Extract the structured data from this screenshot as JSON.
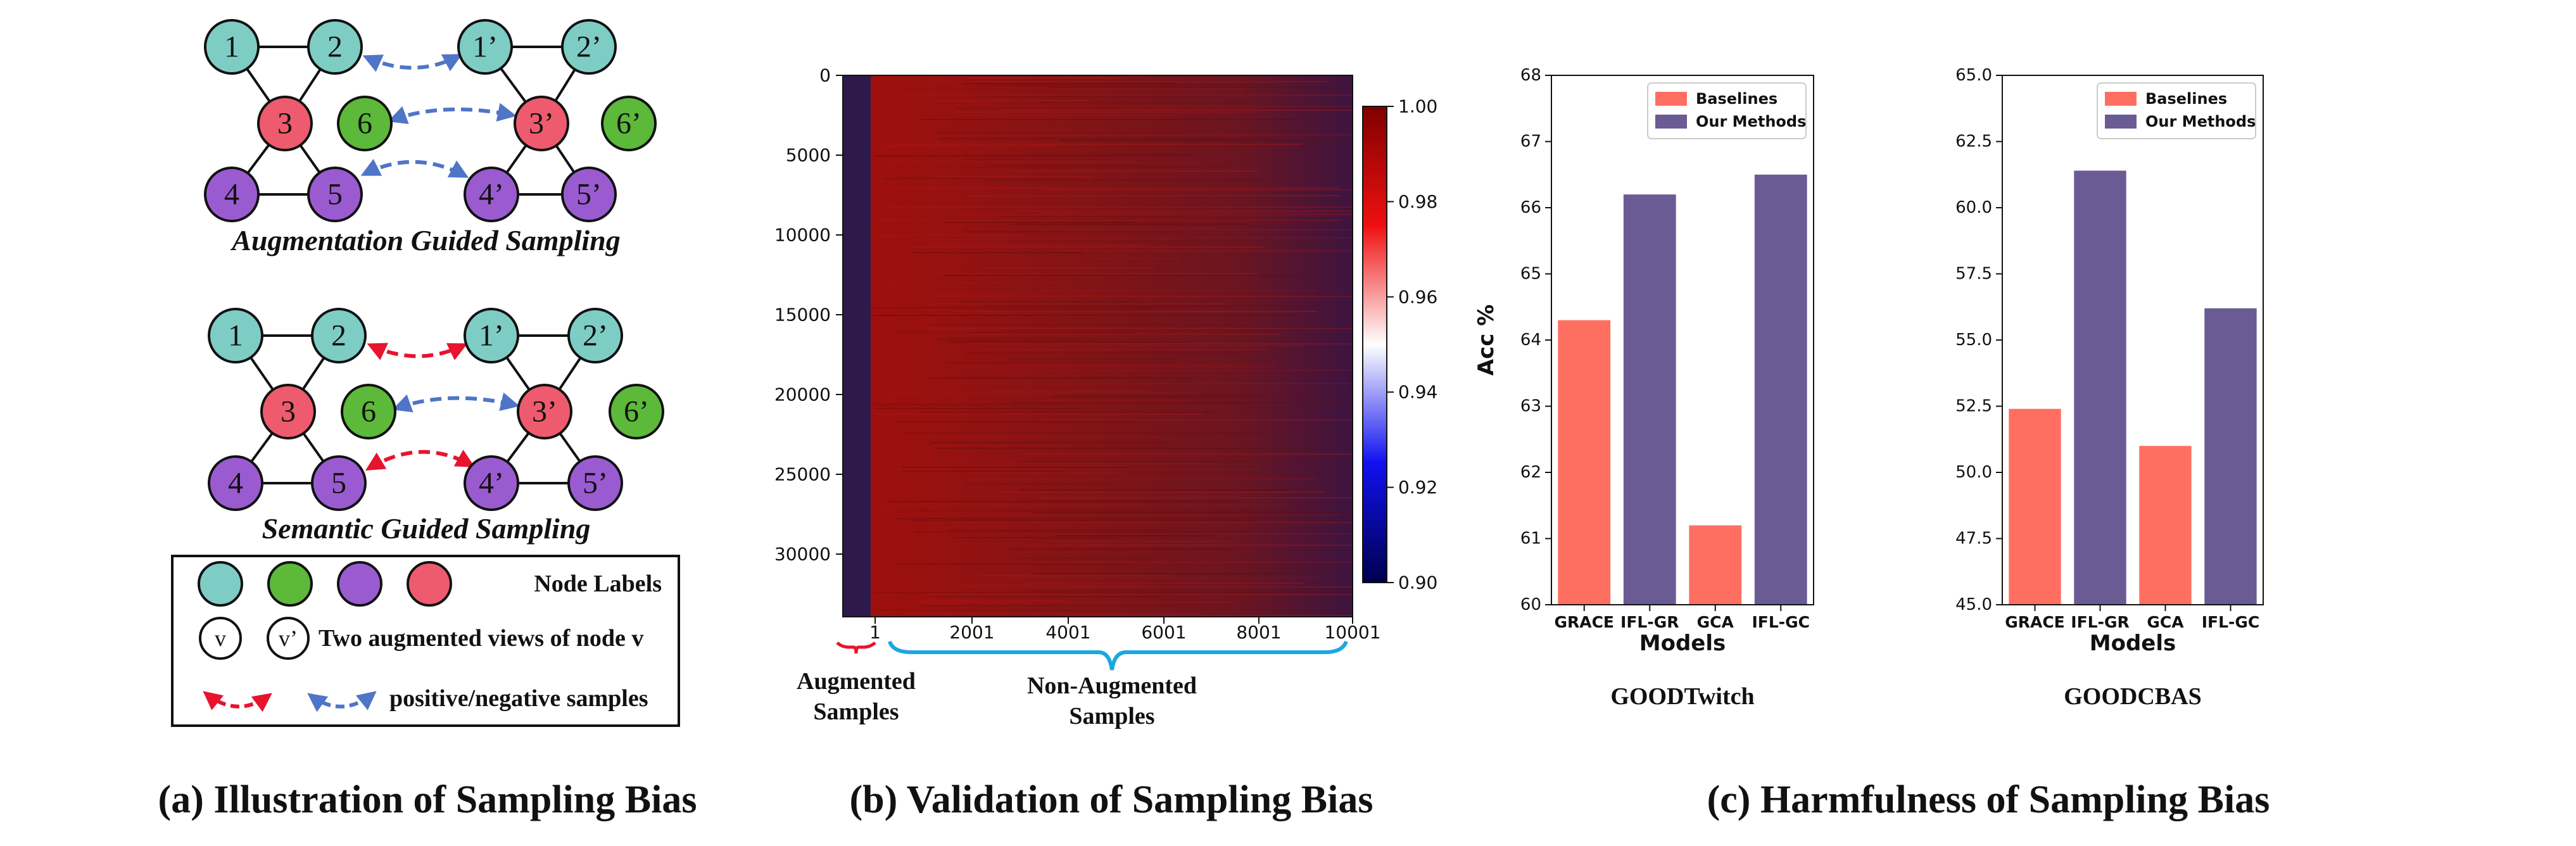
{
  "panel_a": {
    "caption": "(a) Illustration of Sampling Bias",
    "graph1_title": "Augmentation Guided Sampling",
    "graph2_title": "Semantic Guided Sampling",
    "node_labels": [
      "1",
      "2",
      "3",
      "6",
      "4",
      "5"
    ],
    "view_labels": [
      "1’",
      "2’",
      "3’",
      "6’",
      "4’",
      "5’"
    ],
    "legend": {
      "node_labels": "Node Labels",
      "views_node_a": "v",
      "views_node_b": "v’",
      "views_text": "Two augmented views of node v",
      "samples_text": "positive/negative samples"
    },
    "colors": {
      "teal": "#7ecdc4",
      "green": "#5cb93a",
      "purple": "#9b5bd0",
      "pink": "#ee5b6e",
      "red_arrow": "#e8132e",
      "blue_arrow": "#4f75c8"
    }
  },
  "panel_b": {
    "caption": "(b) Validation of Sampling Bias",
    "x_ticks": [
      "1",
      "2001",
      "4001",
      "6001",
      "8001",
      "10001"
    ],
    "y_ticks": [
      "0",
      "5000",
      "10000",
      "15000",
      "20000",
      "25000",
      "30000"
    ],
    "colorbar_ticks": [
      "1.00",
      "0.98",
      "0.96",
      "0.94",
      "0.92",
      "0.90"
    ],
    "augmented_label": [
      "Augmented",
      "Samples"
    ],
    "non_augmented_label": [
      "Non-Augmented",
      "Samples"
    ]
  },
  "panel_c": {
    "caption": "(c) Harmfulness of Sampling Bias",
    "colors": {
      "baselines": "#ff6f61",
      "ours": "#6b5b95"
    }
  },
  "chart_data": [
    {
      "type": "bar",
      "title": "GOODTwitch",
      "xlabel": "Models",
      "ylabel": "Acc %",
      "categories": [
        "GRACE",
        "IFL-GR",
        "GCA",
        "IFL-GC"
      ],
      "values": [
        64.3,
        66.2,
        61.2,
        66.5
      ],
      "groups": [
        "Baselines",
        "Our Methods",
        "Baselines",
        "Our Methods"
      ],
      "legend": [
        "Baselines",
        "Our Methods"
      ],
      "legend_position": "top-right",
      "ylim": [
        60,
        68
      ],
      "y_ticks": [
        "60",
        "61",
        "62",
        "63",
        "64",
        "65",
        "66",
        "67",
        "68"
      ],
      "y_tick_values": [
        60,
        61,
        62,
        63,
        64,
        65,
        66,
        67,
        68
      ]
    },
    {
      "type": "bar",
      "title": "GOODCBAS",
      "xlabel": "Models",
      "ylabel": "",
      "categories": [
        "GRACE",
        "IFL-GR",
        "GCA",
        "IFL-GC"
      ],
      "values": [
        52.4,
        61.4,
        51.0,
        56.2
      ],
      "groups": [
        "Baselines",
        "Our Methods",
        "Baselines",
        "Our Methods"
      ],
      "legend": [
        "Baselines",
        "Our Methods"
      ],
      "legend_position": "top-right",
      "ylim": [
        45,
        65
      ],
      "y_ticks": [
        "45.0",
        "47.5",
        "50.0",
        "52.5",
        "55.0",
        "57.5",
        "60.0",
        "62.5",
        "65.0"
      ],
      "y_tick_values": [
        45,
        47.5,
        50,
        52.5,
        55,
        57.5,
        60,
        62.5,
        65
      ]
    }
  ]
}
